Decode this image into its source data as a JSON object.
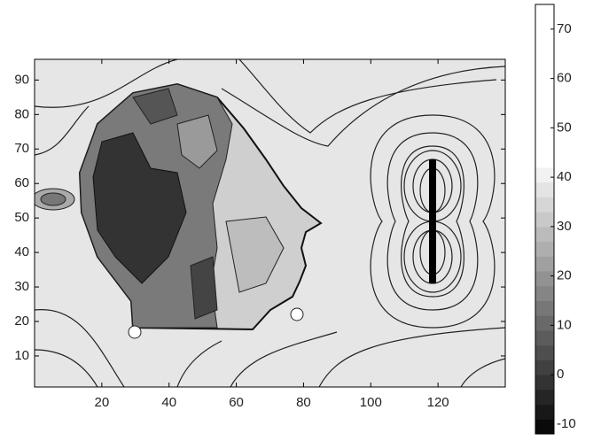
{
  "chart_data": {
    "type": "contour",
    "colormap": "gray",
    "xlim": [
      0,
      140
    ],
    "xticks": [
      20,
      40,
      60,
      80,
      100,
      120
    ],
    "ylim": [
      1,
      96
    ],
    "yticks": [
      10,
      20,
      30,
      40,
      50,
      60,
      70,
      80,
      90
    ],
    "colorbar": {
      "clim": [
        -12,
        75
      ],
      "ticks": [
        -10,
        0,
        10,
        20,
        30,
        40,
        50,
        60,
        70
      ]
    }
  }
}
